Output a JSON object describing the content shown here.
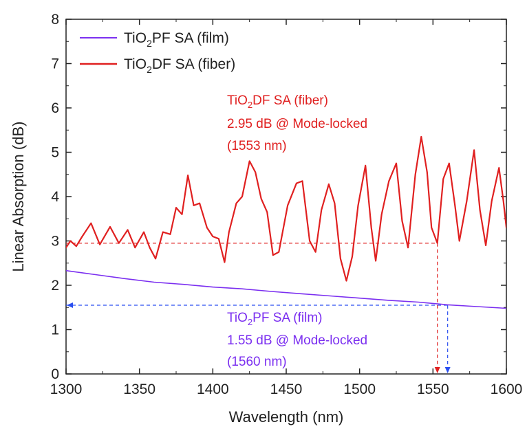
{
  "chart_data": {
    "type": "line",
    "xlabel": "Wavelength (nm)",
    "ylabel": "Linear Absorption (dB)",
    "xlim": [
      1300,
      1600
    ],
    "ylim": [
      0,
      8
    ],
    "x_ticks": [
      "1300",
      "1350",
      "1400",
      "1450",
      "1500",
      "1550",
      "1600"
    ],
    "y_ticks": [
      "0",
      "1",
      "2",
      "3",
      "4",
      "5",
      "6",
      "7",
      "8"
    ],
    "legend_position": "top-left",
    "series": [
      {
        "key": "film",
        "name_main": "TiO",
        "name_sub": "2",
        "name_rest": "PF SA (film)",
        "color": "#7b2ff0",
        "x": [
          1300,
          1320,
          1340,
          1360,
          1380,
          1400,
          1420,
          1440,
          1460,
          1480,
          1500,
          1520,
          1540,
          1560,
          1580,
          1600
        ],
        "y": [
          2.33,
          2.24,
          2.15,
          2.07,
          2.02,
          1.96,
          1.92,
          1.86,
          1.81,
          1.76,
          1.71,
          1.66,
          1.62,
          1.56,
          1.52,
          1.48
        ]
      },
      {
        "key": "fiber",
        "name_main": "TiO",
        "name_sub": "2",
        "name_rest": "DF SA (fiber)",
        "color": "#e02020",
        "x": [
          1300,
          1303,
          1307,
          1311,
          1317,
          1323,
          1330,
          1336,
          1342,
          1347,
          1353,
          1357,
          1361,
          1366,
          1371,
          1375,
          1379,
          1383,
          1387,
          1391,
          1396,
          1400,
          1404,
          1408,
          1411,
          1416,
          1420,
          1425,
          1429,
          1433,
          1437,
          1441,
          1445,
          1451,
          1457,
          1461,
          1466,
          1470,
          1474,
          1479,
          1483,
          1487,
          1491,
          1495,
          1499,
          1504,
          1508,
          1511,
          1515,
          1520,
          1525,
          1529,
          1533,
          1538,
          1542,
          1546,
          1549,
          1553,
          1557,
          1561,
          1565,
          1568,
          1573,
          1578,
          1582,
          1586,
          1590,
          1595,
          1598,
          1600
        ],
        "y": [
          2.85,
          3.0,
          2.88,
          3.1,
          3.4,
          2.92,
          3.32,
          2.95,
          3.25,
          2.85,
          3.2,
          2.85,
          2.6,
          3.2,
          3.15,
          3.75,
          3.6,
          4.48,
          3.8,
          3.85,
          3.3,
          3.1,
          3.05,
          2.52,
          3.2,
          3.85,
          4.0,
          4.8,
          4.55,
          3.95,
          3.65,
          2.68,
          2.75,
          3.8,
          4.3,
          4.35,
          3.0,
          2.75,
          3.7,
          4.28,
          3.85,
          2.6,
          2.1,
          2.65,
          3.8,
          4.7,
          3.3,
          2.55,
          3.6,
          4.35,
          4.75,
          3.45,
          2.85,
          4.5,
          5.35,
          4.55,
          3.3,
          2.95,
          4.4,
          4.75,
          3.8,
          3.0,
          3.9,
          5.05,
          3.7,
          2.9,
          3.9,
          4.65,
          3.9,
          3.3
        ]
      }
    ],
    "reference_lines": [
      {
        "key": "fiber-ref",
        "y": 2.95,
        "x_from": 1300,
        "x_to": 1553,
        "color": "#e02020",
        "style": "dashed",
        "drop_to_axis_at_x": 1553
      },
      {
        "key": "film-ref",
        "y": 1.55,
        "x_from": 1300,
        "x_to": 1560,
        "color": "#2b4ff0",
        "style": "dashed",
        "drop_to_axis_at_x": 1560
      }
    ],
    "annotations": [
      {
        "key": "fiber",
        "color": "#e02020",
        "line1_main": "TiO",
        "line1_sub": "2",
        "line1_rest": "DF SA (fiber)",
        "line2": "2.95 dB @  Mode-locked",
        "line3": "(1553 nm)"
      },
      {
        "key": "film",
        "color": "#7b2ff0",
        "line1_main": "TiO",
        "line1_sub": "2",
        "line1_rest": "PF SA (film)",
        "line2": "1.55 dB @  Mode-locked",
        "line3": "(1560 nm)"
      }
    ]
  }
}
